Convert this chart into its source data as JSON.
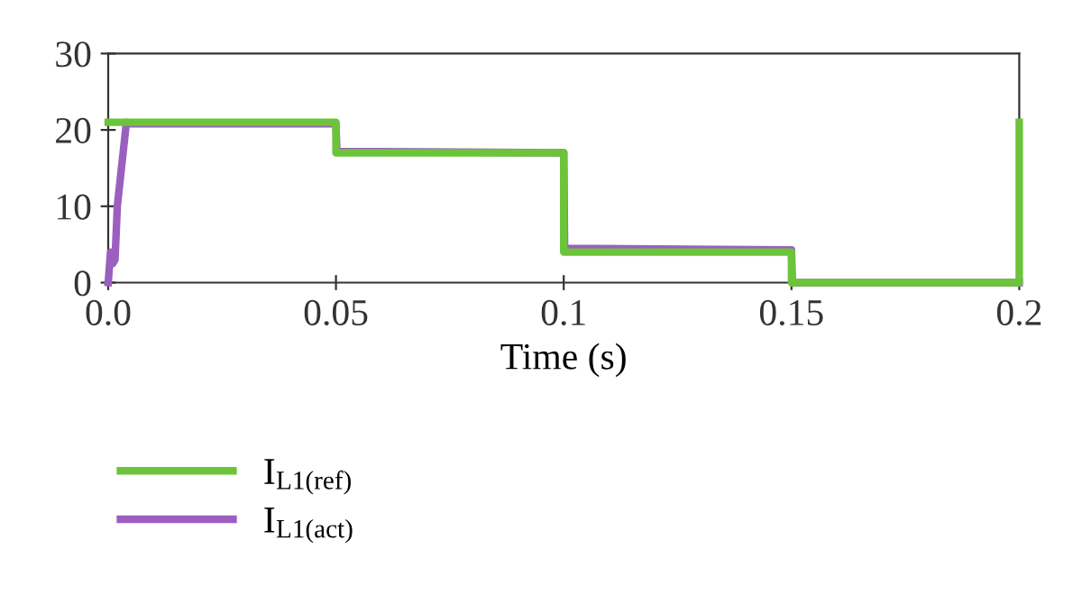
{
  "chart_data": {
    "type": "line",
    "xlabel": "Time (s)",
    "xlim": [
      0,
      0.2
    ],
    "xticks": [
      {
        "value": 0,
        "label": "0.0"
      },
      0.05,
      0.1,
      0.15,
      0.2
    ],
    "ylim": [
      0,
      30
    ],
    "yticks": [
      0,
      10,
      20,
      30
    ],
    "grid": false,
    "legend": "bottom left",
    "marker": "none",
    "line_style": "solid",
    "series": [
      {
        "name": "I$_{L1(ref)}$",
        "color": "#6cc43a",
        "x": [
          0,
          0.05,
          0.05,
          0.1,
          0.1,
          0.15,
          0.15,
          0.2,
          0.2
        ],
        "values": [
          21,
          21,
          17,
          17,
          4,
          4,
          0,
          0,
          21
        ]
      },
      {
        "name": "I$_{L1(act)}$",
        "color": "#9b5fc0",
        "x": [
          0,
          0.0005,
          0.001,
          0.0015,
          0.002,
          0.004,
          0.005,
          0.05,
          0.0502,
          0.1,
          0.1002,
          0.15,
          0.1502,
          0.2
        ],
        "values": [
          0,
          4,
          2.5,
          3,
          10,
          21,
          20.8,
          20.8,
          17.2,
          17,
          4.5,
          4.3,
          0,
          0
        ]
      }
    ]
  }
}
